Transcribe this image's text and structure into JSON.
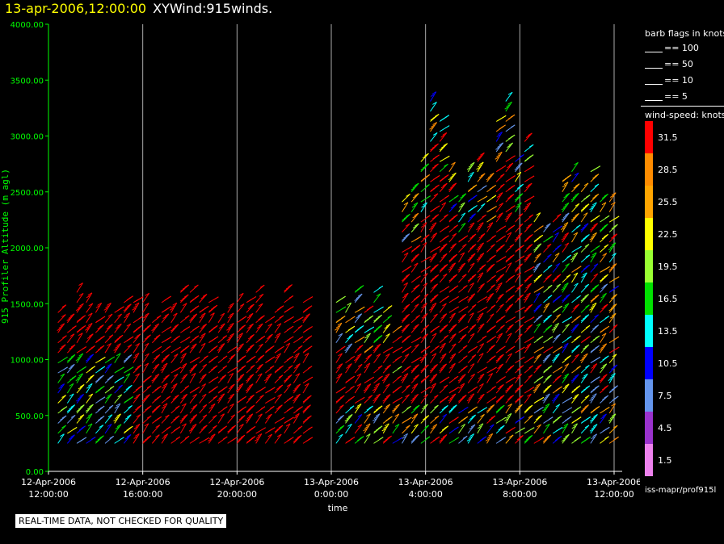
{
  "header": {
    "date": "13-apr-2006,12:00:00",
    "name": "XYWind:915winds."
  },
  "chart_data": {
    "type": "scatter",
    "ylabel": "915 Profiler Altitude (m agl)",
    "xlabel": "time",
    "ylim": [
      0,
      4000
    ],
    "yticks": [
      "0.00",
      "500.00",
      "1000.00",
      "1500.00",
      "2000.00",
      "2500.00",
      "3000.00",
      "3500.00",
      "4000.00"
    ],
    "xticks": [
      {
        "date": "12-Apr-2006",
        "time": "12:00:00"
      },
      {
        "date": "12-Apr-2006",
        "time": "16:00:00"
      },
      {
        "date": "12-Apr-2006",
        "time": "20:00:00"
      },
      {
        "date": "13-Apr-2006",
        "time": "0:00:00"
      },
      {
        "date": "13-Apr-2006",
        "time": "4:00:00"
      },
      {
        "date": "13-Apr-2006",
        "time": "8:00:00"
      },
      {
        "date": "13-Apr-2006",
        "time": "12:00:00"
      }
    ],
    "xlim_hours": [
      0,
      24
    ],
    "grid": "vertical lines at x ticks",
    "series": [
      {
        "time_hours": [
          0.4,
          1.2,
          2.0,
          2.8,
          3.6,
          4.4,
          5.2,
          6.0,
          6.8,
          7.6,
          8.4,
          9.2,
          10.0,
          10.8
        ],
        "note": "profiles every ~0.4h, heights 250-1600 m"
      },
      {
        "time_hours": [
          12.3,
          13.1,
          13.9,
          14.7,
          15.5,
          16.3,
          17.1,
          17.9,
          18.7,
          19.5,
          20.3,
          21.1,
          21.9,
          22.7,
          23.5
        ],
        "note": "profiles, heights 250-3700 m"
      }
    ]
  },
  "legend": {
    "flags_title": "barb flags in knots",
    "flags": [
      "== 100",
      "== 50",
      "== 10",
      "== 5"
    ],
    "speed_title": "wind-speed: knots",
    "speeds": [
      {
        "label": "31.5",
        "color": "#ff0000"
      },
      {
        "label": "28.5",
        "color": "#ff8c00"
      },
      {
        "label": "25.5",
        "color": "#ffa500"
      },
      {
        "label": "22.5",
        "color": "#ffff00"
      },
      {
        "label": "19.5",
        "color": "#9aff32"
      },
      {
        "label": "16.5",
        "color": "#00e000"
      },
      {
        "label": "13.5",
        "color": "#00ffff"
      },
      {
        "label": "10.5",
        "color": "#0000ff"
      },
      {
        "label": "7.5",
        "color": "#6495ed"
      },
      {
        "label": "4.5",
        "color": "#9a32cd"
      },
      {
        "label": "1.5",
        "color": "#ee82ee"
      }
    ],
    "footer": "iss-mapr/prof915l"
  },
  "notice": "REAL-TIME DATA, NOT CHECKED FOR QUALITY",
  "colors": {
    "axis": "#00ff00",
    "grid": "#ffffff",
    "background": "#000000"
  }
}
